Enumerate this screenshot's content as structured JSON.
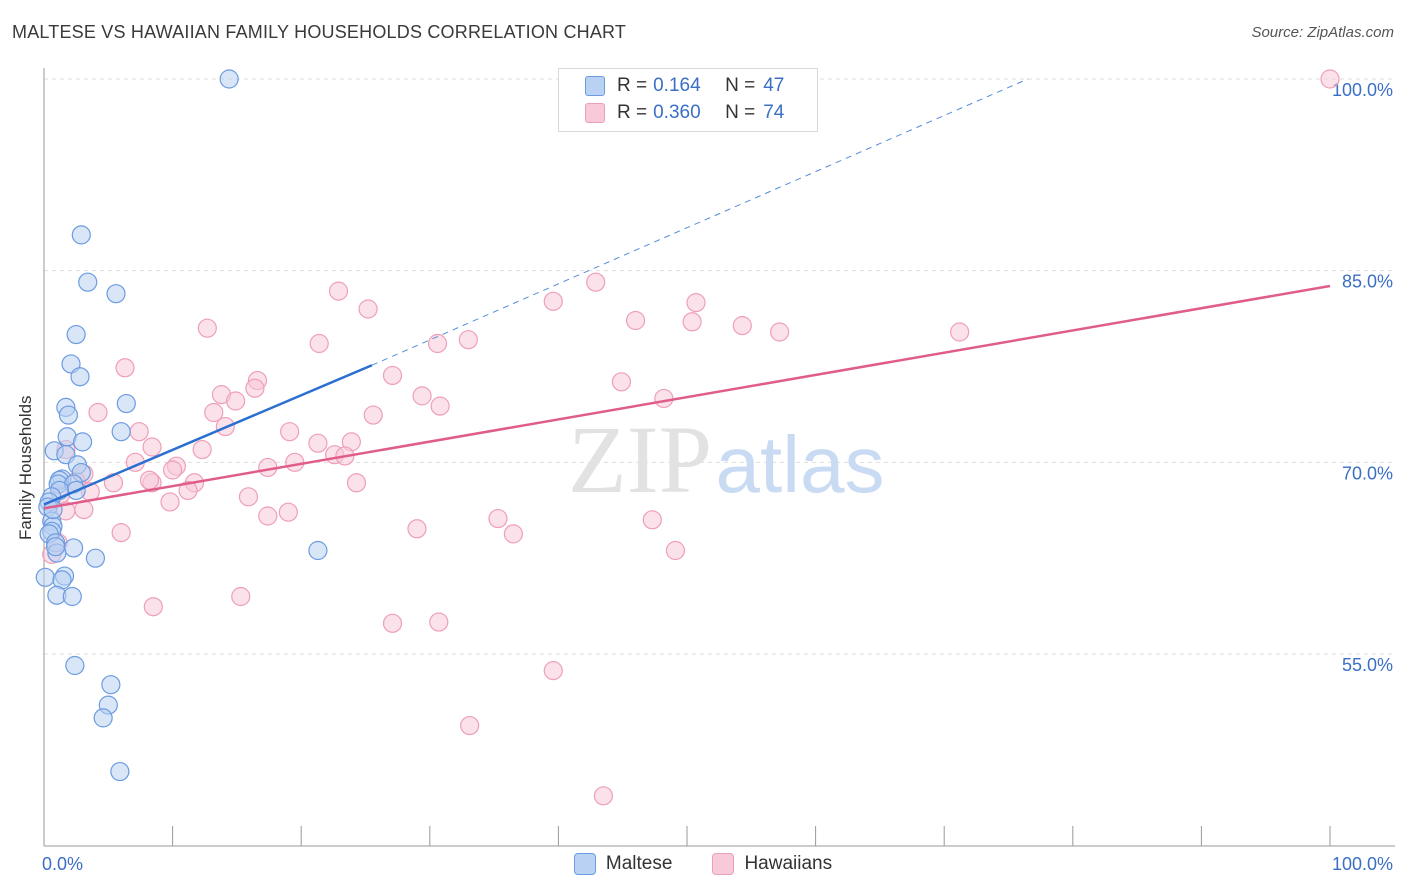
{
  "title": "MALTESE VS HAWAIIAN FAMILY HOUSEHOLDS CORRELATION CHART",
  "source": "Source: ZipAtlas.com",
  "watermark": {
    "zip": "ZIP",
    "atlas": "atlas"
  },
  "colors": {
    "maltese_fill": "#b9d1f3",
    "maltese_stroke": "#6c9be0",
    "maltese_line": "#2b6fd1",
    "hawaiian_fill": "#f8c9d8",
    "hawaiian_stroke": "#ee9fb8",
    "hawaiian_line": "#e05c8b",
    "tick_label": "#3a6fc4",
    "grid": "#dddddd"
  },
  "legend": {
    "rows": [
      {
        "r_label": "R =",
        "r_value": "0.164",
        "n_label": "N =",
        "n_value": "47"
      },
      {
        "r_label": "R =",
        "r_value": "0.360",
        "n_label": "N =",
        "n_value": "74"
      }
    ],
    "bottom": [
      "Maltese",
      "Hawaiians"
    ]
  },
  "chart_data": {
    "type": "scatter",
    "title": "MALTESE VS HAWAIIAN FAMILY HOUSEHOLDS CORRELATION CHART",
    "xlabel": "",
    "ylabel": "Family Households",
    "xlim": [
      0,
      100
    ],
    "ylim": [
      40,
      102
    ],
    "x_tick_labels": [
      "0.0%",
      "100.0%"
    ],
    "y_ticks": [
      {
        "value": 55,
        "label": "55.0%"
      },
      {
        "value": 70,
        "label": "70.0%"
      },
      {
        "value": 85,
        "label": "85.0%"
      },
      {
        "value": 100,
        "label": "100.0%"
      }
    ],
    "series": [
      {
        "name": "Maltese",
        "r": 0.164,
        "n": 47,
        "trend": {
          "x": [
            0,
            25.5
          ],
          "y": [
            66.7,
            77.6
          ],
          "dash_to": [
            76.5,
            100
          ]
        },
        "points": [
          [
            14.4,
            100.0
          ],
          [
            2.9,
            87.8
          ],
          [
            3.4,
            84.1
          ],
          [
            5.6,
            83.2
          ],
          [
            2.5,
            80.0
          ],
          [
            2.1,
            77.7
          ],
          [
            2.8,
            76.7
          ],
          [
            6.4,
            74.6
          ],
          [
            1.7,
            74.3
          ],
          [
            1.9,
            73.7
          ],
          [
            6.0,
            72.4
          ],
          [
            1.8,
            72.0
          ],
          [
            3.0,
            71.6
          ],
          [
            0.8,
            70.9
          ],
          [
            1.7,
            70.6
          ],
          [
            2.6,
            69.8
          ],
          [
            2.9,
            69.2
          ],
          [
            1.4,
            68.7
          ],
          [
            1.2,
            68.6
          ],
          [
            1.1,
            68.3
          ],
          [
            2.3,
            68.3
          ],
          [
            2.5,
            67.8
          ],
          [
            1.2,
            67.8
          ],
          [
            0.6,
            67.3
          ],
          [
            0.4,
            66.9
          ],
          [
            0.3,
            66.5
          ],
          [
            0.6,
            65.4
          ],
          [
            0.7,
            65.0
          ],
          [
            0.6,
            64.6
          ],
          [
            0.4,
            64.4
          ],
          [
            0.9,
            63.7
          ],
          [
            2.3,
            63.3
          ],
          [
            1.0,
            62.9
          ],
          [
            4.0,
            62.5
          ],
          [
            21.3,
            63.1
          ],
          [
            0.1,
            61.0
          ],
          [
            1.6,
            61.1
          ],
          [
            1.4,
            60.8
          ],
          [
            1.0,
            59.6
          ],
          [
            2.2,
            59.5
          ],
          [
            2.4,
            54.1
          ],
          [
            5.2,
            52.6
          ],
          [
            5.0,
            51.0
          ],
          [
            4.6,
            50.0
          ],
          [
            5.9,
            45.8
          ],
          [
            0.9,
            63.4
          ],
          [
            0.7,
            66.3
          ]
        ]
      },
      {
        "name": "Hawaiians",
        "r": 0.36,
        "n": 74,
        "trend": {
          "x": [
            0,
            100
          ],
          "y": [
            66.4,
            83.8
          ]
        },
        "points": [
          [
            100.0,
            100.0
          ],
          [
            42.9,
            84.1
          ],
          [
            22.9,
            83.4
          ],
          [
            39.6,
            82.6
          ],
          [
            50.7,
            82.5
          ],
          [
            25.2,
            82.0
          ],
          [
            46.0,
            81.1
          ],
          [
            50.4,
            81.0
          ],
          [
            54.3,
            80.7
          ],
          [
            12.7,
            80.5
          ],
          [
            57.2,
            80.2
          ],
          [
            71.2,
            80.2
          ],
          [
            33.0,
            79.6
          ],
          [
            21.4,
            79.3
          ],
          [
            30.6,
            79.3
          ],
          [
            6.3,
            77.4
          ],
          [
            27.1,
            76.8
          ],
          [
            16.6,
            76.4
          ],
          [
            44.9,
            76.3
          ],
          [
            16.4,
            75.8
          ],
          [
            13.8,
            75.3
          ],
          [
            29.4,
            75.2
          ],
          [
            14.9,
            74.8
          ],
          [
            48.2,
            75.0
          ],
          [
            30.8,
            74.4
          ],
          [
            4.2,
            73.9
          ],
          [
            13.2,
            73.9
          ],
          [
            25.6,
            73.7
          ],
          [
            14.1,
            72.8
          ],
          [
            7.4,
            72.4
          ],
          [
            19.1,
            72.4
          ],
          [
            23.9,
            71.6
          ],
          [
            21.3,
            71.5
          ],
          [
            8.4,
            71.2
          ],
          [
            12.3,
            71.0
          ],
          [
            22.6,
            70.6
          ],
          [
            23.4,
            70.5
          ],
          [
            7.1,
            70.0
          ],
          [
            19.5,
            70.0
          ],
          [
            10.3,
            69.7
          ],
          [
            17.4,
            69.6
          ],
          [
            10.0,
            69.4
          ],
          [
            3.1,
            69.1
          ],
          [
            11.7,
            68.4
          ],
          [
            8.4,
            68.4
          ],
          [
            5.4,
            68.4
          ],
          [
            24.3,
            68.4
          ],
          [
            11.2,
            67.8
          ],
          [
            3.6,
            67.7
          ],
          [
            9.8,
            66.9
          ],
          [
            15.9,
            67.3
          ],
          [
            3.1,
            66.3
          ],
          [
            1.7,
            66.2
          ],
          [
            1.7,
            71.0
          ],
          [
            19.0,
            66.1
          ],
          [
            17.4,
            65.8
          ],
          [
            35.3,
            65.6
          ],
          [
            29.0,
            64.8
          ],
          [
            36.5,
            64.4
          ],
          [
            47.3,
            65.5
          ],
          [
            6.0,
            64.5
          ],
          [
            1.1,
            63.7
          ],
          [
            0.6,
            62.8
          ],
          [
            49.1,
            63.1
          ],
          [
            15.3,
            59.5
          ],
          [
            8.5,
            58.7
          ],
          [
            27.1,
            57.4
          ],
          [
            30.7,
            57.5
          ],
          [
            39.6,
            53.7
          ],
          [
            33.1,
            49.4
          ],
          [
            43.5,
            43.9
          ],
          [
            2.5,
            68.5
          ],
          [
            1.3,
            67.5
          ],
          [
            8.2,
            68.6
          ]
        ]
      }
    ]
  }
}
